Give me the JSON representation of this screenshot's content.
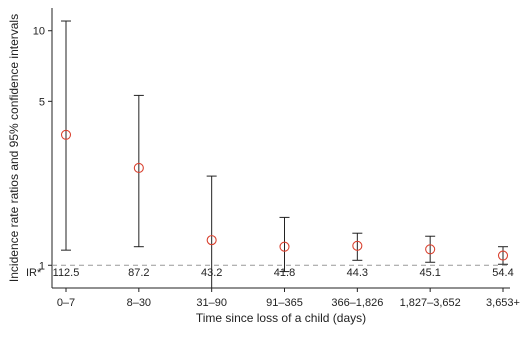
{
  "chart_data": {
    "type": "scatter",
    "subtype": "point-with-error-bars",
    "title": "",
    "xlabel": "Time since loss of a child (days)",
    "ylabel": "Incidence rate ratios and 95% confidence intervals",
    "y_scale": "log",
    "ylim": [
      0.8,
      12.5
    ],
    "y_ticks": [
      1,
      5,
      10
    ],
    "y_tick_labels": [
      "1",
      "5",
      "10"
    ],
    "reference_line": {
      "y": 1,
      "style": "dashed",
      "color": "#999999"
    },
    "categories": [
      "0–7",
      "8–30",
      "31–90",
      "91–365",
      "366–1,826",
      "1,827–3,652",
      "3,653+"
    ],
    "estimates": [
      3.6,
      2.6,
      1.28,
      1.2,
      1.21,
      1.17,
      1.1
    ],
    "ci_lower": [
      1.16,
      1.2,
      0.8,
      0.94,
      1.05,
      1.03,
      1.01
    ],
    "ci_upper": [
      11.0,
      5.3,
      2.4,
      1.6,
      1.37,
      1.33,
      1.2
    ],
    "ir_label": "IR*",
    "ir_values": [
      "112.5",
      "87.2",
      "43.2",
      "41.8",
      "44.3",
      "45.1",
      "54.4"
    ],
    "grid": false,
    "legend": "none",
    "colors": {
      "marker": "#d9412f",
      "error_bar": "#222222",
      "axis": "#222222"
    }
  }
}
